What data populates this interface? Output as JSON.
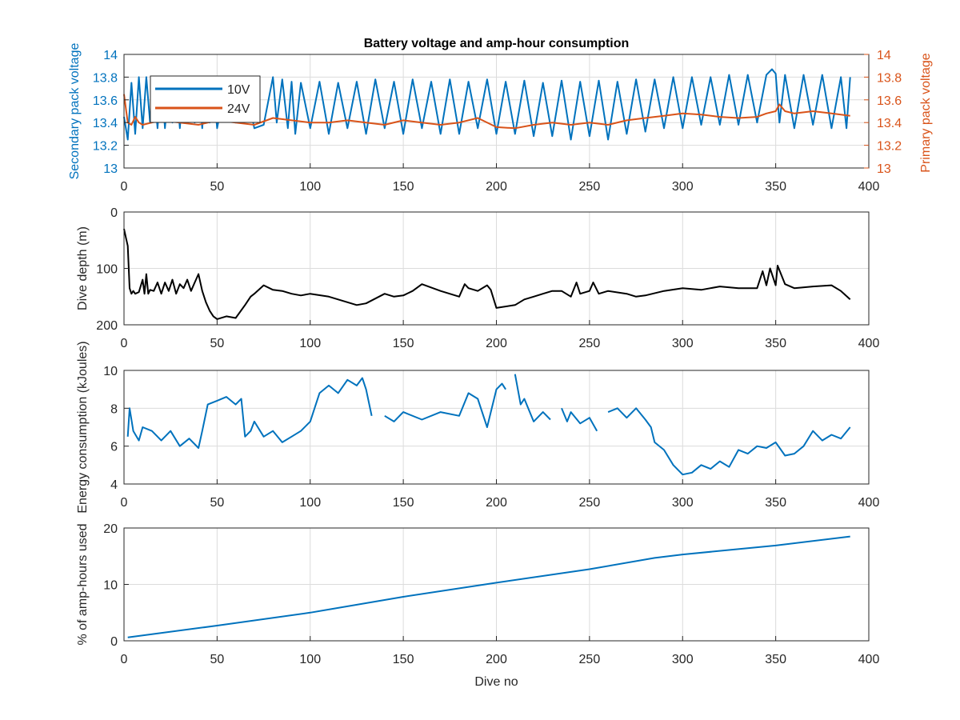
{
  "chart_data": [
    {
      "type": "line",
      "title": "Battery voltage and amp-hour consumption",
      "xlabel": "",
      "xlim": [
        0,
        400
      ],
      "xticks": [
        0,
        50,
        100,
        150,
        200,
        250,
        300,
        350,
        400
      ],
      "ylabel_left": "Secondary pack voltage",
      "ylabel_right": "Primary pack voltage",
      "ylim": [
        13,
        14
      ],
      "yticks": [
        "13",
        "13.2",
        "13.4",
        "13.6",
        "13.8",
        "14"
      ],
      "grid": true,
      "legend": {
        "placement": "top-left",
        "entries": [
          "10V",
          "24V"
        ]
      },
      "colors": {
        "left": "#0072BD",
        "right": "#D95319"
      },
      "series": [
        {
          "name": "10V",
          "axis": "left",
          "color": "#0072BD",
          "x": [
            0,
            2,
            4,
            6,
            8,
            10,
            12,
            14,
            16,
            18,
            20,
            22,
            24,
            26,
            28,
            30,
            32,
            34,
            36,
            38,
            40,
            42,
            44,
            46,
            48,
            50,
            55,
            60,
            65,
            70,
            75,
            80,
            82,
            85,
            88,
            90,
            92,
            95,
            100,
            105,
            110,
            115,
            120,
            125,
            130,
            135,
            140,
            145,
            150,
            155,
            160,
            165,
            170,
            175,
            180,
            185,
            190,
            195,
            200,
            205,
            210,
            215,
            220,
            225,
            230,
            235,
            240,
            245,
            250,
            255,
            260,
            265,
            270,
            275,
            280,
            285,
            290,
            295,
            300,
            305,
            310,
            315,
            320,
            325,
            330,
            335,
            340,
            345,
            348,
            350,
            352,
            355,
            360,
            365,
            370,
            375,
            380,
            385,
            388,
            390
          ],
          "y": [
            13.45,
            13.25,
            13.75,
            13.3,
            13.8,
            13.35,
            13.8,
            13.4,
            13.75,
            13.35,
            13.8,
            13.35,
            13.75,
            13.4,
            13.8,
            13.35,
            13.75,
            13.4,
            13.8,
            13.4,
            13.75,
            13.35,
            13.8,
            13.4,
            13.75,
            13.35,
            13.78,
            13.4,
            13.76,
            13.35,
            13.38,
            13.8,
            13.4,
            13.78,
            13.35,
            13.76,
            13.3,
            13.75,
            13.35,
            13.76,
            13.3,
            13.75,
            13.35,
            13.76,
            13.3,
            13.78,
            13.35,
            13.76,
            13.3,
            13.78,
            13.35,
            13.76,
            13.3,
            13.78,
            13.3,
            13.76,
            13.35,
            13.78,
            13.3,
            13.76,
            13.3,
            13.77,
            13.28,
            13.75,
            13.28,
            13.77,
            13.25,
            13.76,
            13.28,
            13.77,
            13.25,
            13.76,
            13.3,
            13.78,
            13.32,
            13.78,
            13.35,
            13.8,
            13.35,
            13.8,
            13.38,
            13.8,
            13.38,
            13.82,
            13.38,
            13.82,
            13.4,
            13.82,
            13.87,
            13.83,
            13.4,
            13.82,
            13.35,
            13.82,
            13.38,
            13.82,
            13.35,
            13.8,
            13.35,
            13.8
          ]
        },
        {
          "name": "24V",
          "axis": "right",
          "color": "#D95319",
          "x": [
            0,
            2,
            4,
            6,
            8,
            10,
            15,
            20,
            30,
            40,
            50,
            60,
            70,
            80,
            90,
            100,
            110,
            120,
            130,
            140,
            150,
            160,
            170,
            180,
            190,
            200,
            210,
            220,
            230,
            240,
            250,
            260,
            270,
            280,
            290,
            300,
            310,
            320,
            330,
            340,
            345,
            350,
            352,
            355,
            360,
            370,
            380,
            390
          ],
          "y": [
            13.65,
            13.4,
            13.38,
            13.45,
            13.4,
            13.38,
            13.4,
            13.42,
            13.4,
            13.38,
            13.42,
            13.4,
            13.38,
            13.44,
            13.42,
            13.4,
            13.4,
            13.42,
            13.4,
            13.38,
            13.42,
            13.4,
            13.38,
            13.4,
            13.44,
            13.36,
            13.35,
            13.38,
            13.4,
            13.38,
            13.4,
            13.38,
            13.42,
            13.44,
            13.46,
            13.48,
            13.47,
            13.45,
            13.44,
            13.45,
            13.48,
            13.5,
            13.56,
            13.5,
            13.48,
            13.5,
            13.48,
            13.46
          ]
        }
      ]
    },
    {
      "type": "line",
      "title": "",
      "xlabel": "",
      "xlim": [
        0,
        400
      ],
      "xticks": [
        0,
        50,
        100,
        150,
        200,
        250,
        300,
        350,
        400
      ],
      "ylabel": "Dive depth (m)",
      "ylim": [
        0,
        200
      ],
      "y_reversed": true,
      "yticks": [
        "0",
        "100",
        "200"
      ],
      "grid": true,
      "series": [
        {
          "color": "#000000",
          "x": [
            0,
            1,
            2,
            3,
            4,
            5,
            6,
            8,
            10,
            11,
            12,
            13,
            14,
            16,
            18,
            20,
            22,
            24,
            26,
            28,
            30,
            32,
            34,
            36,
            38,
            40,
            42,
            44,
            46,
            48,
            50,
            55,
            60,
            65,
            68,
            70,
            75,
            80,
            85,
            90,
            95,
            100,
            110,
            120,
            125,
            130,
            140,
            145,
            150,
            155,
            160,
            170,
            180,
            183,
            185,
            190,
            195,
            197,
            200,
            210,
            215,
            220,
            225,
            230,
            235,
            240,
            243,
            245,
            250,
            252,
            255,
            260,
            270,
            275,
            280,
            290,
            300,
            310,
            320,
            330,
            340,
            343,
            345,
            347,
            350,
            351,
            355,
            360,
            370,
            380,
            385,
            390
          ],
          "y": [
            30,
            45,
            60,
            135,
            145,
            140,
            145,
            142,
            120,
            145,
            110,
            145,
            138,
            140,
            125,
            145,
            125,
            140,
            120,
            145,
            128,
            135,
            120,
            140,
            125,
            110,
            140,
            160,
            175,
            185,
            190,
            185,
            188,
            165,
            150,
            145,
            130,
            138,
            140,
            145,
            148,
            145,
            150,
            160,
            165,
            162,
            145,
            150,
            148,
            140,
            128,
            140,
            150,
            128,
            135,
            140,
            130,
            138,
            170,
            165,
            155,
            150,
            145,
            140,
            140,
            150,
            125,
            145,
            140,
            125,
            145,
            140,
            145,
            150,
            148,
            140,
            135,
            138,
            132,
            135,
            135,
            105,
            130,
            100,
            130,
            95,
            128,
            135,
            132,
            130,
            140,
            155
          ]
        }
      ]
    },
    {
      "type": "line",
      "title": "",
      "xlabel": "",
      "xlim": [
        0,
        400
      ],
      "xticks": [
        0,
        50,
        100,
        150,
        200,
        250,
        300,
        350,
        400
      ],
      "ylabel": "Energy consumption (kJoules)",
      "ylim": [
        4,
        10
      ],
      "yticks": [
        "4",
        "6",
        "8",
        "10"
      ],
      "grid": true,
      "series": [
        {
          "color": "#0072BD",
          "segments": [
            {
              "x": [
                2,
                3,
                5,
                8,
                10,
                15,
                20,
                25,
                30,
                35,
                40,
                42,
                45,
                50,
                55,
                60,
                63,
                65,
                68,
                70,
                75,
                80,
                85,
                90,
                95,
                100,
                105,
                110,
                115,
                120,
                125,
                128,
                130,
                133
              ],
              "y": [
                6.5,
                8,
                6.8,
                6.3,
                7,
                6.8,
                6.3,
                6.8,
                6,
                6.4,
                5.9,
                6.8,
                8.2,
                8.4,
                8.6,
                8.2,
                8.5,
                6.5,
                6.8,
                7.3,
                6.5,
                6.8,
                6.2,
                6.5,
                6.8,
                7.3,
                8.8,
                9.2,
                8.8,
                9.5,
                9.2,
                9.6,
                9,
                7.6
              ]
            },
            {
              "x": [
                140,
                145,
                150,
                160,
                170,
                180,
                185,
                190,
                195,
                200,
                203,
                205
              ],
              "y": [
                7.6,
                7.3,
                7.8,
                7.4,
                7.8,
                7.6,
                8.8,
                8.5,
                7,
                9,
                9.3,
                9
              ]
            },
            {
              "x": [
                210,
                213,
                215,
                220,
                225,
                229
              ],
              "y": [
                9.8,
                8.2,
                8.5,
                7.3,
                7.8,
                7.4
              ]
            },
            {
              "x": [
                235,
                238,
                240,
                245,
                250,
                254
              ],
              "y": [
                8,
                7.3,
                7.8,
                7.2,
                7.5,
                6.8
              ]
            },
            {
              "x": [
                260,
                265,
                270,
                275,
                280,
                283,
                285,
                290,
                295,
                300,
                305,
                310,
                315,
                320,
                325,
                330,
                335,
                340,
                345,
                350,
                355,
                360,
                365,
                370,
                375,
                380,
                385,
                390
              ],
              "y": [
                7.8,
                8,
                7.5,
                8,
                7.4,
                7,
                6.2,
                5.8,
                5,
                4.5,
                4.6,
                5,
                4.8,
                5.2,
                4.9,
                5.8,
                5.6,
                6,
                5.9,
                6.2,
                5.5,
                5.6,
                6,
                6.8,
                6.3,
                6.6,
                6.4,
                7
              ]
            }
          ]
        }
      ]
    },
    {
      "type": "line",
      "title": "",
      "xlabel": "Dive no",
      "xlim": [
        0,
        400
      ],
      "xticks": [
        0,
        50,
        100,
        150,
        200,
        250,
        300,
        350,
        400
      ],
      "ylabel": "% of amp-hours used",
      "ylim": [
        0,
        20
      ],
      "yticks": [
        "0",
        "10",
        "20"
      ],
      "grid": true,
      "series": [
        {
          "color": "#0072BD",
          "x": [
            2,
            50,
            100,
            150,
            200,
            250,
            285,
            300,
            350,
            390
          ],
          "y": [
            0.6,
            2.7,
            5.0,
            7.8,
            10.3,
            12.7,
            14.7,
            15.3,
            16.9,
            18.5
          ]
        }
      ]
    }
  ]
}
